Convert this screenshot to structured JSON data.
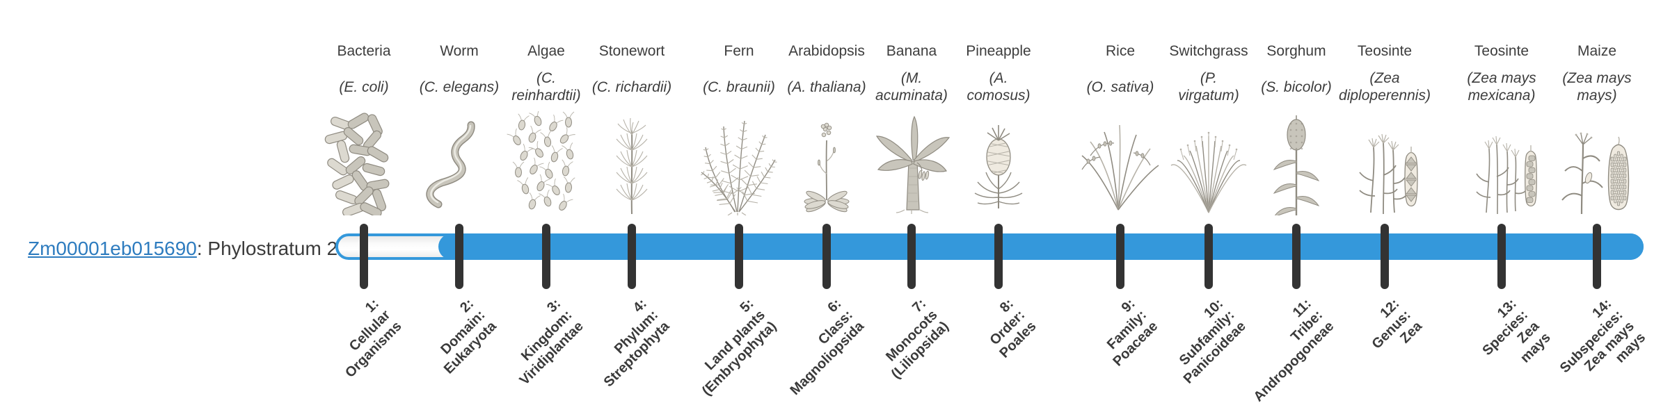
{
  "gene": {
    "id_link": "Zm00001eb015690",
    "label_suffix": ": Phylostratum 2",
    "link_color": "#2e7cbf"
  },
  "bar": {
    "phylostratum": 2,
    "fill_color": "#3498db",
    "tick_color": "#333333"
  },
  "strata": [
    {
      "num": "1",
      "name": "Bacteria",
      "sci_lines": [
        "(E. coli)"
      ],
      "icon": "bacteria-icon",
      "label_lines": [
        "1:",
        "Cellular",
        "Organisms"
      ]
    },
    {
      "num": "2",
      "name": "Worm",
      "sci_lines": [
        "(C. elegans)"
      ],
      "icon": "worm-icon",
      "label_lines": [
        "2:",
        "Domain:",
        "Eukaryota"
      ]
    },
    {
      "num": "3",
      "name": "Algae",
      "sci_lines": [
        "(C.",
        "reinhardtii)"
      ],
      "icon": "algae-icon",
      "label_lines": [
        "3:",
        "Kingdom:",
        "Viridiplantae"
      ]
    },
    {
      "num": "4",
      "name": "Stonewort",
      "sci_lines": [
        "(C. richardii)"
      ],
      "icon": "stonewort-icon",
      "label_lines": [
        "4:",
        "Phylum:",
        "Streptophyta"
      ]
    },
    {
      "num": "5",
      "name": "Fern",
      "sci_lines": [
        "(C. braunii)"
      ],
      "icon": "fern-icon",
      "label_lines": [
        "5:",
        "Land plants",
        "(Embryophyta)"
      ]
    },
    {
      "num": "6",
      "name": "Arabidopsis",
      "sci_lines": [
        "(A. thaliana)"
      ],
      "icon": "arabidopsis-icon",
      "label_lines": [
        "6:",
        "Class:",
        "Magnoliopsida"
      ]
    },
    {
      "num": "7",
      "name": "Banana",
      "sci_lines": [
        "(M.",
        "acuminata)"
      ],
      "icon": "banana-icon",
      "label_lines": [
        "7:",
        "Monocots",
        "(Liliopsida)"
      ]
    },
    {
      "num": "8",
      "name": "Pineapple",
      "sci_lines": [
        "(A.",
        "comosus)"
      ],
      "icon": "pineapple-icon",
      "label_lines": [
        "8:",
        "Order:",
        "Poales"
      ]
    },
    {
      "num": "9",
      "name": "Rice",
      "sci_lines": [
        "(O. sativa)"
      ],
      "icon": "rice-icon",
      "label_lines": [
        "9:",
        "Family:",
        "Poaceae"
      ]
    },
    {
      "num": "10",
      "name": "Switchgrass",
      "sci_lines": [
        "(P.",
        "virgatum)"
      ],
      "icon": "switchgrass-icon",
      "label_lines": [
        "10:",
        "Subfamily:",
        "Panicoideae"
      ]
    },
    {
      "num": "11",
      "name": "Sorghum",
      "sci_lines": [
        "(S. bicolor)"
      ],
      "icon": "sorghum-icon",
      "label_lines": [
        "11:",
        "Tribe:",
        "Andropogoneae"
      ]
    },
    {
      "num": "12",
      "name": "Teosinte",
      "sci_lines": [
        "(Zea",
        "diploperennis)"
      ],
      "icon": "teosinte-diploperennis-icon",
      "label_lines": [
        "12:",
        "Genus:",
        "Zea"
      ]
    },
    {
      "num": "13",
      "name": "Teosinte",
      "sci_lines": [
        "(Zea mays",
        "mexicana)"
      ],
      "icon": "teosinte-mexicana-icon",
      "label_lines": [
        "13:",
        "Species:",
        "Zea",
        "mays"
      ]
    },
    {
      "num": "14",
      "name": "Maize",
      "sci_lines": [
        "(Zea mays",
        "mays)"
      ],
      "icon": "maize-icon",
      "label_lines": [
        "14:",
        "Subspecies:",
        "Zea mays",
        "mays"
      ]
    }
  ]
}
